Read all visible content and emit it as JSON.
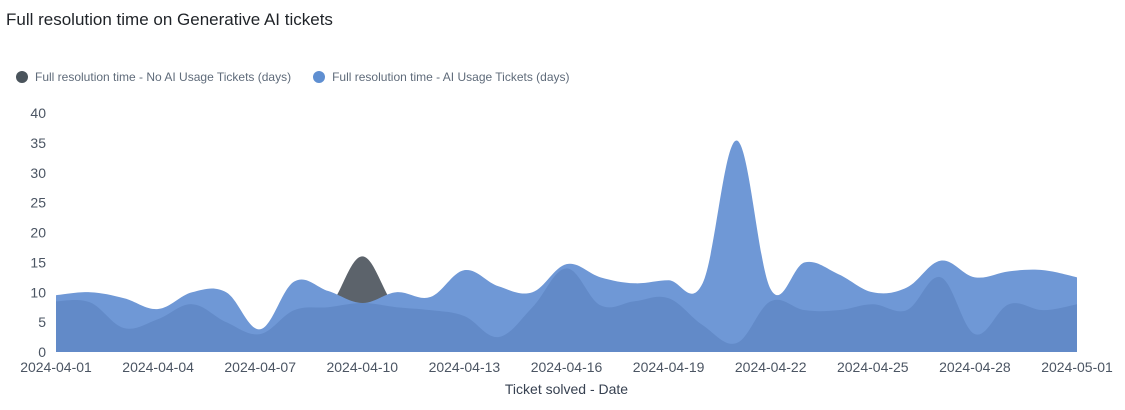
{
  "title": "Full resolution time on Generative AI tickets",
  "legend": [
    {
      "label": "Full resolution time - No AI Usage Tickets (days)",
      "color": "#4a545c"
    },
    {
      "label": "Full resolution time - AI Usage Tickets (days)",
      "color": "#5f8fd1"
    }
  ],
  "chart_data": {
    "type": "area",
    "title": "Full resolution time on Generative AI tickets",
    "xlabel": "Ticket solved - Date",
    "ylabel": "",
    "ylim": [
      0,
      40
    ],
    "yticks": [
      0,
      5,
      10,
      15,
      20,
      25,
      30,
      35,
      40
    ],
    "xticks": [
      "2024-04-01",
      "2024-04-04",
      "2024-04-07",
      "2024-04-10",
      "2024-04-13",
      "2024-04-16",
      "2024-04-19",
      "2024-04-22",
      "2024-04-25",
      "2024-04-28",
      "2024-05-01"
    ],
    "grid": false,
    "legend_position": "top-left",
    "x": [
      "2024-04-01",
      "2024-04-02",
      "2024-04-03",
      "2024-04-04",
      "2024-04-05",
      "2024-04-06",
      "2024-04-07",
      "2024-04-08",
      "2024-04-09",
      "2024-04-10",
      "2024-04-11",
      "2024-04-12",
      "2024-04-13",
      "2024-04-14",
      "2024-04-15",
      "2024-04-16",
      "2024-04-17",
      "2024-04-18",
      "2024-04-19",
      "2024-04-20",
      "2024-04-21",
      "2024-04-22",
      "2024-04-23",
      "2024-04-24",
      "2024-04-25",
      "2024-04-26",
      "2024-04-27",
      "2024-04-28",
      "2024-04-29",
      "2024-04-30",
      "2024-05-01"
    ],
    "series": [
      {
        "name": "Full resolution time - No AI Usage Tickets (days)",
        "color": "#4a545c",
        "values": [
          8.5,
          8.3,
          4.0,
          5.5,
          8.0,
          5.0,
          3.0,
          7.0,
          7.5,
          16.0,
          7.5,
          7.0,
          6.0,
          2.5,
          7.5,
          14.0,
          7.8,
          8.5,
          9.0,
          4.5,
          1.5,
          8.5,
          7.0,
          7.0,
          8.0,
          7.0,
          12.5,
          3.0,
          8.0,
          7.0,
          8.0
        ]
      },
      {
        "name": "Full resolution time - AI Usage Tickets (days)",
        "color": "#5f8fd1",
        "values": [
          9.5,
          10.0,
          9.0,
          7.2,
          10.0,
          10.0,
          3.8,
          11.8,
          10.2,
          8.2,
          10.0,
          9.2,
          13.7,
          11.0,
          10.0,
          14.7,
          12.5,
          11.5,
          12.0,
          11.5,
          35.4,
          10.5,
          15.0,
          13.0,
          10.0,
          10.8,
          15.3,
          12.5,
          13.5,
          13.7,
          12.5
        ]
      }
    ]
  }
}
